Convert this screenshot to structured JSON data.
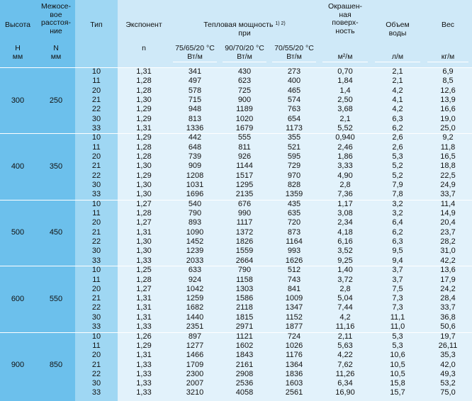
{
  "header": {
    "height": "Высота",
    "spacing": "Межосе-\nвое\nрасстоя-\nние",
    "type": "Тип",
    "exponent": "Экспонент",
    "power": "Тепловая мощность",
    "power_note": "1) 2)",
    "power_sub": "при",
    "painted": "Окрашен-\nная\nповерх-\nность",
    "volume": "Объем\nводы",
    "weight": "Вес",
    "t1": "75/65/20 °C",
    "t2": "90/70/20 °C",
    "t3": "70/55/20 °C"
  },
  "units": {
    "height": "H\nмм",
    "spacing": "N\nмм",
    "exponent": "n",
    "p1": "Вт/м",
    "p2": "Вт/м",
    "p3": "Вт/м",
    "painted": "м²/м",
    "volume": "л/м",
    "weight": "кг/м"
  },
  "groups": [
    {
      "height": "300",
      "spacing": "250",
      "rows": [
        [
          "10",
          "1,31",
          "341",
          "430",
          "273",
          "0,70",
          "2,1",
          "6,9"
        ],
        [
          "11",
          "1,28",
          "497",
          "623",
          "400",
          "1,84",
          "2,1",
          "8,5"
        ],
        [
          "20",
          "1,28",
          "578",
          "725",
          "465",
          "1,4",
          "4,2",
          "12,6"
        ],
        [
          "21",
          "1,30",
          "715",
          "900",
          "574",
          "2,50",
          "4,1",
          "13,9"
        ],
        [
          "22",
          "1,29",
          "948",
          "1189",
          "763",
          "3,68",
          "4,2",
          "16,6"
        ],
        [
          "30",
          "1,29",
          "813",
          "1020",
          "654",
          "2,1",
          "6,3",
          "19,0"
        ],
        [
          "33",
          "1,31",
          "1336",
          "1679",
          "1173",
          "5,52",
          "6,2",
          "25,0"
        ]
      ]
    },
    {
      "height": "400",
      "spacing": "350",
      "rows": [
        [
          "10",
          "1,29",
          "442",
          "555",
          "355",
          "0,940",
          "2,6",
          "9,2"
        ],
        [
          "11",
          "1,28",
          "648",
          "811",
          "521",
          "2,46",
          "2,6",
          "11,8"
        ],
        [
          "20",
          "1,28",
          "739",
          "926",
          "595",
          "1,86",
          "5,3",
          "16,5"
        ],
        [
          "21",
          "1,30",
          "909",
          "1144",
          "729",
          "3,33",
          "5,2",
          "18,8"
        ],
        [
          "22",
          "1,29",
          "1208",
          "1517",
          "970",
          "4,90",
          "5,2",
          "22,5"
        ],
        [
          "30",
          "1,30",
          "1031",
          "1295",
          "828",
          "2,8",
          "7,9",
          "24,9"
        ],
        [
          "33",
          "1,30",
          "1696",
          "2135",
          "1359",
          "7,36",
          "7,8",
          "33,7"
        ]
      ]
    },
    {
      "height": "500",
      "spacing": "450",
      "rows": [
        [
          "10",
          "1,27",
          "540",
          "676",
          "435",
          "1,17",
          "3,2",
          "11,4"
        ],
        [
          "11",
          "1,28",
          "790",
          "990",
          "635",
          "3,08",
          "3,2",
          "14,9"
        ],
        [
          "20",
          "1,27",
          "893",
          "1117",
          "720",
          "2,34",
          "6,4",
          "20,4"
        ],
        [
          "21",
          "1,31",
          "1090",
          "1372",
          "873",
          "4,18",
          "6,2",
          "23,7"
        ],
        [
          "22",
          "1,30",
          "1452",
          "1826",
          "1164",
          "6,16",
          "6,3",
          "28,2"
        ],
        [
          "30",
          "1,30",
          "1239",
          "1559",
          "993",
          "3,52",
          "9,5",
          "31,0"
        ],
        [
          "33",
          "1,33",
          "2033",
          "2664",
          "1626",
          "9,25",
          "9,4",
          "42,2"
        ]
      ]
    },
    {
      "height": "600",
      "spacing": "550",
      "rows": [
        [
          "10",
          "1,25",
          "633",
          "790",
          "512",
          "1,40",
          "3,7",
          "13,6"
        ],
        [
          "11",
          "1,28",
          "924",
          "1158",
          "743",
          "3,72",
          "3,7",
          "17,9"
        ],
        [
          "20",
          "1,27",
          "1042",
          "1303",
          "841",
          "2,8",
          "7,5",
          "24,2"
        ],
        [
          "21",
          "1,31",
          "1259",
          "1586",
          "1009",
          "5,04",
          "7,3",
          "28,4"
        ],
        [
          "22",
          "1,31",
          "1682",
          "2118",
          "1347",
          "7,44",
          "7,3",
          "33,7"
        ],
        [
          "30",
          "1,31",
          "1440",
          "1815",
          "1152",
          "4,2",
          "11,1",
          "36,8"
        ],
        [
          "33",
          "1,33",
          "2351",
          "2971",
          "1877",
          "11,16",
          "11,0",
          "50,6"
        ]
      ]
    },
    {
      "height": "900",
      "spacing": "850",
      "rows": [
        [
          "10",
          "1,26",
          "897",
          "1121",
          "724",
          "2,11",
          "5,3",
          "19,7"
        ],
        [
          "11",
          "1,29",
          "1277",
          "1602",
          "1026",
          "5,63",
          "5,3",
          "26,11"
        ],
        [
          "20",
          "1,31",
          "1466",
          "1843",
          "1176",
          "4,22",
          "10,6",
          "35,3"
        ],
        [
          "21",
          "1,33",
          "1709",
          "2161",
          "1364",
          "7,62",
          "10,5",
          "42,0"
        ],
        [
          "22",
          "1,33",
          "2300",
          "2908",
          "1836",
          "11,26",
          "10,5",
          "49,3"
        ],
        [
          "30",
          "1,33",
          "2007",
          "2536",
          "1603",
          "6,34",
          "15,8",
          "53,2"
        ],
        [
          "33",
          "1,33",
          "3210",
          "4058",
          "2561",
          "16,90",
          "15,7",
          "75,0"
        ]
      ]
    }
  ]
}
